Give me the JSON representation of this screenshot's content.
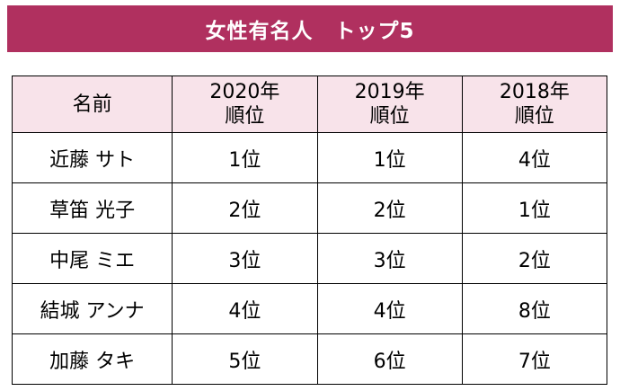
{
  "title": "女性有名人　トップ5",
  "colors": {
    "title_bar": "#b0305f",
    "title_text": "#ffffff",
    "header_bg": "#f8e3ea",
    "border": "#000000"
  },
  "table": {
    "headers": [
      {
        "lines": [
          "名前"
        ]
      },
      {
        "lines": [
          "2020年",
          "順位"
        ]
      },
      {
        "lines": [
          "2019年",
          "順位"
        ]
      },
      {
        "lines": [
          "2018年",
          "順位"
        ]
      }
    ],
    "rows": [
      [
        "近藤 サト",
        "1位",
        "1位",
        "4位"
      ],
      [
        "草笛 光子",
        "2位",
        "2位",
        "1位"
      ],
      [
        "中尾 ミエ",
        "3位",
        "3位",
        "2位"
      ],
      [
        "結城 アンナ",
        "4位",
        "4位",
        "8位"
      ],
      [
        "加藤 タキ",
        "5位",
        "6位",
        "7位"
      ]
    ]
  }
}
